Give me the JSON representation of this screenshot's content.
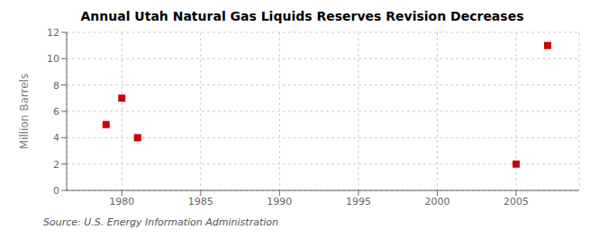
{
  "chart_data": {
    "type": "scatter",
    "title": "Annual Utah Natural Gas Liquids Reserves Revision Decreases",
    "y_label": "Million Barrels",
    "annotations": [
      "Source: U.S. Energy Information Administration"
    ],
    "x": [
      1979,
      1980,
      1981,
      2005,
      2007
    ],
    "values": [
      5.0,
      7.0,
      4.0,
      2.0,
      11.0
    ],
    "color": "#cc0000",
    "marker": "square",
    "xlim": [
      1976.5,
      2009
    ],
    "ylim": [
      0,
      12
    ],
    "xticks": [
      1980,
      1985,
      1990,
      1995,
      2000,
      2005
    ],
    "yticks": [
      0,
      2,
      4,
      6,
      8,
      10,
      12
    ],
    "grid": true
  }
}
